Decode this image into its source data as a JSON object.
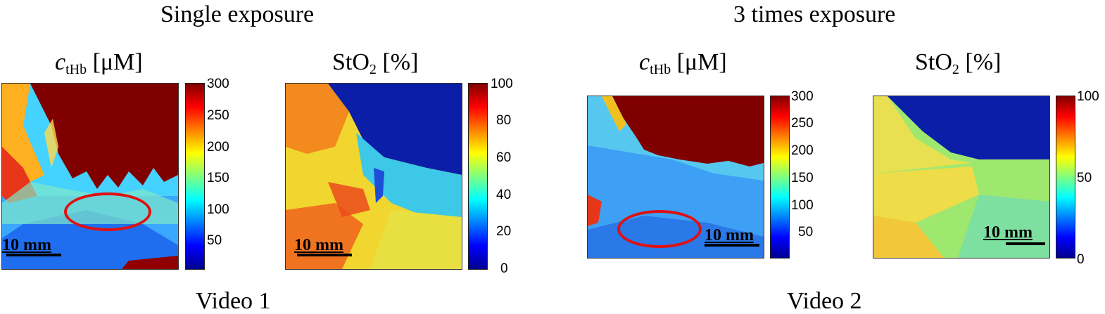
{
  "groups": [
    {
      "title": "Single exposure",
      "caption": "Video 1",
      "maps": [
        {
          "quantity_symbol": "c",
          "quantity_subscript": "tHb",
          "unit": "[μM]",
          "colorbar_ticks": [
            "300",
            "250",
            "200",
            "150",
            "100",
            "50"
          ],
          "scale_bar": "10 mm"
        },
        {
          "quantity_symbol": "StO",
          "quantity_subscript": "2",
          "unit": "[%]",
          "colorbar_ticks": [
            "100",
            "80",
            "60",
            "40",
            "20",
            "0"
          ],
          "scale_bar": "10 mm"
        }
      ]
    },
    {
      "title": "3 times exposure",
      "caption": "Video 2",
      "maps": [
        {
          "quantity_symbol": "c",
          "quantity_subscript": "tHb",
          "unit": "[μM]",
          "colorbar_ticks": [
            "300",
            "250",
            "200",
            "150",
            "100",
            "50"
          ],
          "scale_bar": "10 mm"
        },
        {
          "quantity_symbol": "StO",
          "quantity_subscript": "2",
          "unit": "[%]",
          "colorbar_ticks": [
            "100",
            "50",
            "0"
          ],
          "scale_bar": "10 mm"
        }
      ]
    }
  ],
  "colors": {
    "colormap": "jet",
    "highlight_ellipse": "#e01010"
  }
}
